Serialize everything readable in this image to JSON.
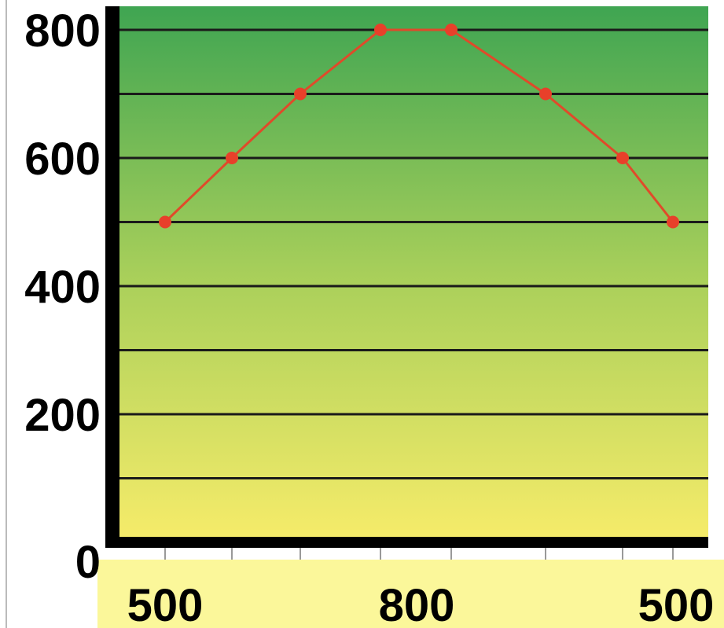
{
  "chart_data": {
    "type": "line",
    "title": "",
    "xlabel": "",
    "ylabel": "",
    "ylim": [
      0,
      850
    ],
    "y_ticks": [
      {
        "value": 800,
        "label": "800"
      },
      {
        "value": 600,
        "label": "600"
      },
      {
        "value": 400,
        "label": "400"
      },
      {
        "value": 200,
        "label": "200"
      },
      {
        "value": 0,
        "label": "0"
      }
    ],
    "x_tick_labels": [
      {
        "index": 0,
        "label": "500"
      },
      {
        "index": 3,
        "label": "800"
      },
      {
        "index": 7,
        "label": "500"
      }
    ],
    "gridlines": [
      100,
      200,
      300,
      400,
      500,
      600,
      700,
      800
    ],
    "grid": true,
    "legend": "none",
    "series": [
      {
        "values": [
          500,
          600,
          700,
          800,
          800,
          700,
          600,
          500
        ]
      }
    ],
    "colors": {
      "line": "#e04a2a",
      "marker": "#e8402a",
      "axis": "#000000",
      "grid": "#1a1a1a",
      "plot_top": "#3fa552",
      "plot_mid": "#a8cf5a",
      "plot_bottom": "#f7ec6a",
      "xlabel_band": "#fbf79a"
    }
  }
}
